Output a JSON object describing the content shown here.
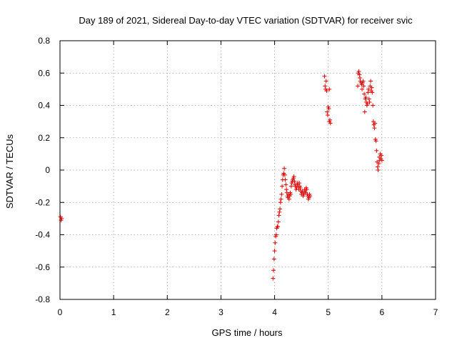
{
  "chart_data": {
    "type": "scatter",
    "title": "Day 189 of 2021, Sidereal Day-to-day VTEC variation (SDTVAR) for receiver svic",
    "xlabel": "GPS time / hours",
    "ylabel": "SDTVAR / TECUs",
    "xlim": [
      0,
      7
    ],
    "ylim": [
      -0.8,
      0.8
    ],
    "xticks": [
      0,
      1,
      2,
      3,
      4,
      5,
      6,
      7
    ],
    "xtick_labels": [
      "0",
      "1",
      "2",
      "3",
      "4",
      "5",
      "6",
      "7"
    ],
    "yticks": [
      -0.8,
      -0.6,
      -0.4,
      -0.2,
      0,
      0.2,
      0.4,
      0.6,
      0.8
    ],
    "ytick_labels": [
      "-0.8",
      "-0.6",
      "-0.4",
      "-0.2",
      "0",
      "0.2",
      "0.4",
      "0.6",
      "0.8"
    ],
    "grid": true,
    "marker": "+",
    "color": "#e00000",
    "series": [
      {
        "name": "SDTVAR",
        "points": [
          [
            0.01,
            -0.29
          ],
          [
            0.02,
            -0.31
          ],
          [
            0.03,
            -0.3
          ],
          [
            3.97,
            -0.67
          ],
          [
            3.98,
            -0.62
          ],
          [
            3.99,
            -0.55
          ],
          [
            4.0,
            -0.5
          ],
          [
            4.01,
            -0.45
          ],
          [
            4.02,
            -0.41
          ],
          [
            4.03,
            -0.4
          ],
          [
            4.04,
            -0.36
          ],
          [
            4.05,
            -0.35
          ],
          [
            4.06,
            -0.35
          ],
          [
            4.07,
            -0.32
          ],
          [
            4.08,
            -0.28
          ],
          [
            4.09,
            -0.26
          ],
          [
            4.1,
            -0.24
          ],
          [
            4.11,
            -0.2
          ],
          [
            4.12,
            -0.18
          ],
          [
            4.13,
            -0.15
          ],
          [
            4.14,
            -0.1
          ],
          [
            4.15,
            -0.06
          ],
          [
            4.16,
            -0.03
          ],
          [
            4.17,
            -0.02
          ],
          [
            4.18,
            0.01
          ],
          [
            4.19,
            -0.03
          ],
          [
            4.2,
            -0.06
          ],
          [
            4.21,
            -0.09
          ],
          [
            4.22,
            -0.12
          ],
          [
            4.23,
            -0.14
          ],
          [
            4.24,
            -0.16
          ],
          [
            4.25,
            -0.17
          ],
          [
            4.26,
            -0.15
          ],
          [
            4.27,
            -0.18
          ],
          [
            4.28,
            -0.16
          ],
          [
            4.29,
            -0.14
          ],
          [
            4.3,
            -0.15
          ],
          [
            4.31,
            -0.1
          ],
          [
            4.32,
            -0.08
          ],
          [
            4.33,
            -0.07
          ],
          [
            4.34,
            -0.06
          ],
          [
            4.35,
            -0.05
          ],
          [
            4.36,
            -0.04
          ],
          [
            4.37,
            -0.07
          ],
          [
            4.38,
            -0.09
          ],
          [
            4.39,
            -0.1
          ],
          [
            4.4,
            -0.12
          ],
          [
            4.41,
            -0.11
          ],
          [
            4.42,
            -0.09
          ],
          [
            4.43,
            -0.08
          ],
          [
            4.44,
            -0.1
          ],
          [
            4.45,
            -0.12
          ],
          [
            4.46,
            -0.08
          ],
          [
            4.47,
            -0.1
          ],
          [
            4.48,
            -0.11
          ],
          [
            4.49,
            -0.13
          ],
          [
            4.5,
            -0.15
          ],
          [
            4.51,
            -0.14
          ],
          [
            4.52,
            -0.13
          ],
          [
            4.53,
            -0.16
          ],
          [
            4.54,
            -0.15
          ],
          [
            4.55,
            -0.14
          ],
          [
            4.56,
            -0.12
          ],
          [
            4.57,
            -0.13
          ],
          [
            4.58,
            -0.14
          ],
          [
            4.59,
            -0.11
          ],
          [
            4.6,
            -0.12
          ],
          [
            4.61,
            -0.15
          ],
          [
            4.62,
            -0.16
          ],
          [
            4.63,
            -0.18
          ],
          [
            4.64,
            -0.17
          ],
          [
            4.65,
            -0.15
          ],
          [
            4.66,
            -0.16
          ],
          [
            4.93,
            0.58
          ],
          [
            4.94,
            0.52
          ],
          [
            4.95,
            0.5
          ],
          [
            4.96,
            0.55
          ],
          [
            4.97,
            0.49
          ],
          [
            4.98,
            0.36
          ],
          [
            4.99,
            0.34
          ],
          [
            5.0,
            0.39
          ],
          [
            5.01,
            0.38
          ],
          [
            5.02,
            0.3
          ],
          [
            5.03,
            0.31
          ],
          [
            5.04,
            0.29
          ],
          [
            5.02,
            0.5
          ],
          [
            5.55,
            0.52
          ],
          [
            5.56,
            0.6
          ],
          [
            5.57,
            0.61
          ],
          [
            5.58,
            0.59
          ],
          [
            5.59,
            0.57
          ],
          [
            5.6,
            0.55
          ],
          [
            5.61,
            0.54
          ],
          [
            5.62,
            0.53
          ],
          [
            5.63,
            0.5
          ],
          [
            5.64,
            0.54
          ],
          [
            5.65,
            0.55
          ],
          [
            5.66,
            0.52
          ],
          [
            5.67,
            0.47
          ],
          [
            5.68,
            0.36
          ],
          [
            5.69,
            0.44
          ],
          [
            5.7,
            0.45
          ],
          [
            5.71,
            0.42
          ],
          [
            5.72,
            0.4
          ],
          [
            5.73,
            0.41
          ],
          [
            5.74,
            0.48
          ],
          [
            5.75,
            0.5
          ],
          [
            5.76,
            0.44
          ],
          [
            5.77,
            0.42
          ],
          [
            5.78,
            0.52
          ],
          [
            5.79,
            0.55
          ],
          [
            5.8,
            0.49
          ],
          [
            5.81,
            0.51
          ],
          [
            5.82,
            0.48
          ],
          [
            5.83,
            0.4
          ],
          [
            5.84,
            0.3
          ],
          [
            5.85,
            0.28
          ],
          [
            5.86,
            0.26
          ],
          [
            5.87,
            0.29
          ],
          [
            5.88,
            0.19
          ],
          [
            5.89,
            0.18
          ],
          [
            5.9,
            0.12
          ],
          [
            5.91,
            0.05
          ],
          [
            5.92,
            0.02
          ],
          [
            5.93,
            0.0
          ],
          [
            5.94,
            0.04
          ],
          [
            5.95,
            0.08
          ],
          [
            5.96,
            0.06
          ],
          [
            5.97,
            0.1
          ],
          [
            5.98,
            0.07
          ],
          [
            5.99,
            0.09
          ],
          [
            6.0,
            0.06
          ]
        ]
      }
    ]
  }
}
